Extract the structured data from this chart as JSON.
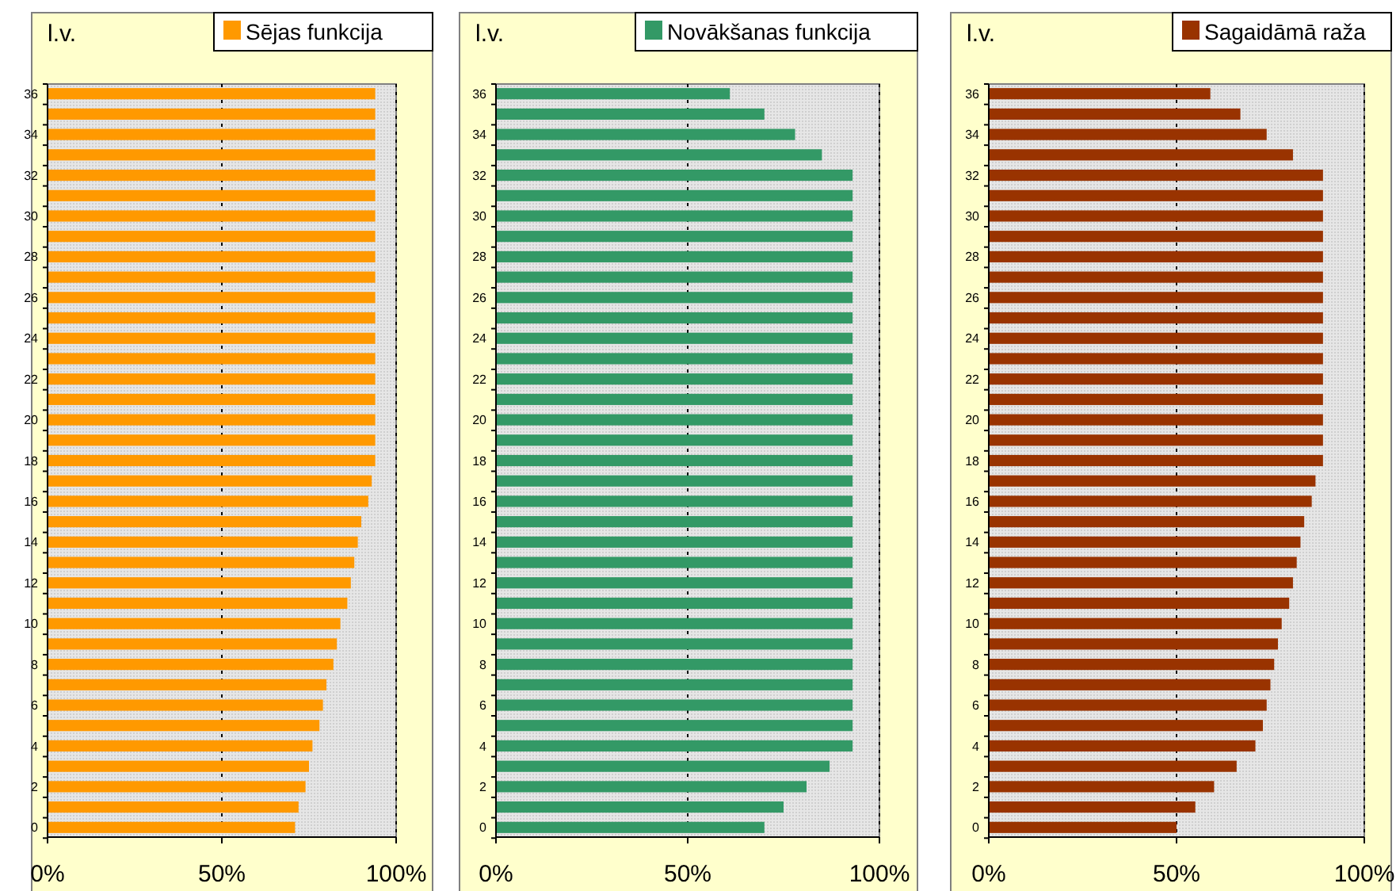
{
  "chart_data": [
    {
      "type": "bar",
      "orientation": "horizontal",
      "ylabel": "l.v.",
      "legend": "top right",
      "grid": "x",
      "xlim": [
        0,
        100
      ],
      "xticks": [
        {
          "value": 0,
          "label": "0%"
        },
        {
          "value": 50,
          "label": "50%"
        },
        {
          "value": 100,
          "label": "100%"
        }
      ],
      "categories": [
        "36",
        null,
        "34",
        null,
        "32",
        null,
        "30",
        null,
        "28",
        null,
        "26",
        null,
        "24",
        null,
        "22",
        null,
        "20",
        null,
        "18",
        null,
        "16",
        null,
        "14",
        null,
        "12",
        null,
        "10",
        null,
        "8",
        null,
        "6",
        null,
        "4",
        null,
        "2",
        null,
        "0"
      ],
      "series": [
        {
          "name": "Sējas funkcija",
          "color": "#ff9900",
          "values": [
            94,
            94,
            94,
            94,
            94,
            94,
            94,
            94,
            94,
            94,
            94,
            94,
            94,
            94,
            94,
            94,
            94,
            94,
            94,
            93,
            92,
            90,
            89,
            88,
            87,
            86,
            84,
            83,
            82,
            80,
            79,
            78,
            76,
            75,
            74,
            72,
            71
          ]
        }
      ]
    },
    {
      "type": "bar",
      "orientation": "horizontal",
      "ylabel": "l.v.",
      "legend": "top right",
      "grid": "x",
      "xlim": [
        0,
        100
      ],
      "xticks": [
        {
          "value": 0,
          "label": "0%"
        },
        {
          "value": 50,
          "label": "50%"
        },
        {
          "value": 100,
          "label": "100%"
        }
      ],
      "categories": [
        "36",
        null,
        "34",
        null,
        "32",
        null,
        "30",
        null,
        "28",
        null,
        "26",
        null,
        "24",
        null,
        "22",
        null,
        "20",
        null,
        "18",
        null,
        "16",
        null,
        "14",
        null,
        "12",
        null,
        "10",
        null,
        "8",
        null,
        "6",
        null,
        "4",
        null,
        "2",
        null,
        "0"
      ],
      "series": [
        {
          "name": "Novākšanas funkcija",
          "color": "#339966",
          "values": [
            61,
            70,
            78,
            85,
            93,
            93,
            93,
            93,
            93,
            93,
            93,
            93,
            93,
            93,
            93,
            93,
            93,
            93,
            93,
            93,
            93,
            93,
            93,
            93,
            93,
            93,
            93,
            93,
            93,
            93,
            93,
            93,
            93,
            87,
            81,
            75,
            70
          ]
        }
      ]
    },
    {
      "type": "bar",
      "orientation": "horizontal",
      "ylabel": "l.v.",
      "legend": "top right",
      "grid": "x",
      "xlim": [
        0,
        100
      ],
      "xticks": [
        {
          "value": 0,
          "label": "0%"
        },
        {
          "value": 50,
          "label": "50%"
        },
        {
          "value": 100,
          "label": "100%"
        }
      ],
      "categories": [
        "36",
        null,
        "34",
        null,
        "32",
        null,
        "30",
        null,
        "28",
        null,
        "26",
        null,
        "24",
        null,
        "22",
        null,
        "20",
        null,
        "18",
        null,
        "16",
        null,
        "14",
        null,
        "12",
        null,
        "10",
        null,
        "8",
        null,
        "6",
        null,
        "4",
        null,
        "2",
        null,
        "0"
      ],
      "series": [
        {
          "name": "Sagaidāmā raža",
          "color": "#993300",
          "values": [
            59,
            67,
            74,
            81,
            89,
            89,
            89,
            89,
            89,
            89,
            89,
            89,
            89,
            89,
            89,
            89,
            89,
            89,
            89,
            87,
            86,
            84,
            83,
            82,
            81,
            80,
            78,
            77,
            76,
            75,
            74,
            73,
            71,
            66,
            60,
            55,
            50
          ]
        }
      ]
    }
  ]
}
